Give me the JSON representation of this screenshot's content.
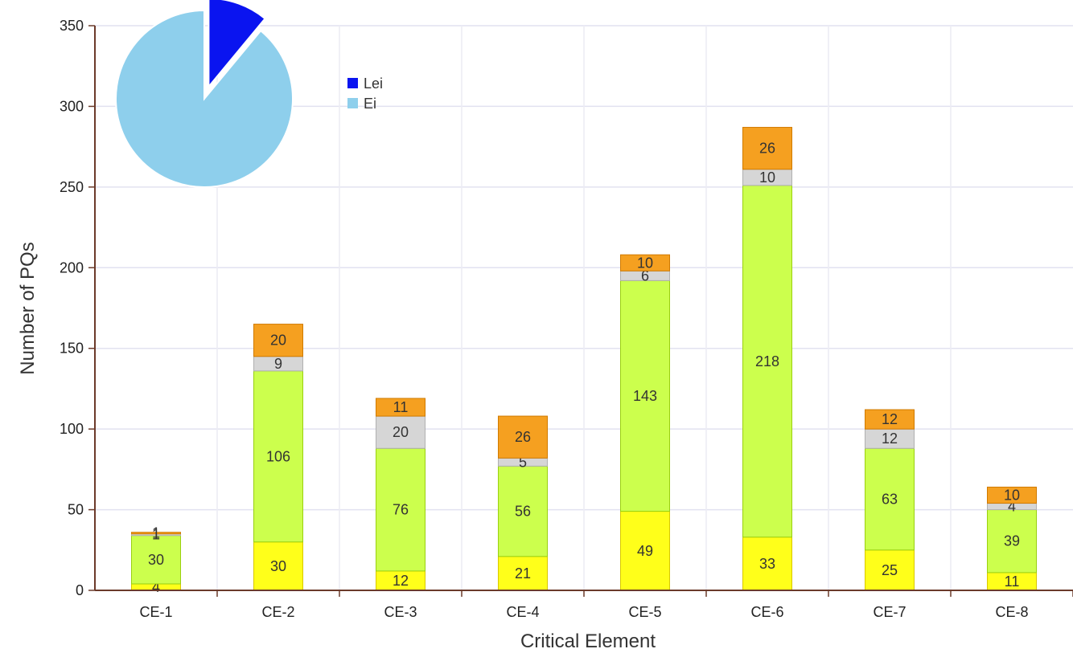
{
  "chart_data": [
    {
      "type": "bar",
      "stacked": true,
      "categories": [
        "CE-1",
        "CE-2",
        "CE-3",
        "CE-4",
        "CE-5",
        "CE-6",
        "CE-7",
        "CE-8"
      ],
      "series": [
        {
          "color": "#ffff1a",
          "values": [
            4,
            30,
            12,
            21,
            49,
            33,
            25,
            11
          ]
        },
        {
          "color": "#ccff4d",
          "values": [
            30,
            106,
            76,
            56,
            143,
            218,
            63,
            39
          ]
        },
        {
          "color": "#d6d6d6",
          "values": [
            1,
            9,
            20,
            5,
            6,
            10,
            12,
            4
          ]
        },
        {
          "color": "#f5a020",
          "values": [
            1,
            20,
            11,
            26,
            10,
            26,
            12,
            10
          ]
        }
      ],
      "xlabel": "Critical Element",
      "ylabel": "Number of PQs",
      "ylim": [
        0,
        350
      ],
      "yticks": [
        0,
        50,
        100,
        150,
        200,
        250,
        300,
        350
      ],
      "grid": true
    },
    {
      "type": "pie",
      "labels": [
        "Lei",
        "Ei"
      ],
      "values": [
        11,
        89
      ],
      "colors": [
        "#0a14f0",
        "#8ecfec"
      ],
      "legend": "right"
    }
  ]
}
